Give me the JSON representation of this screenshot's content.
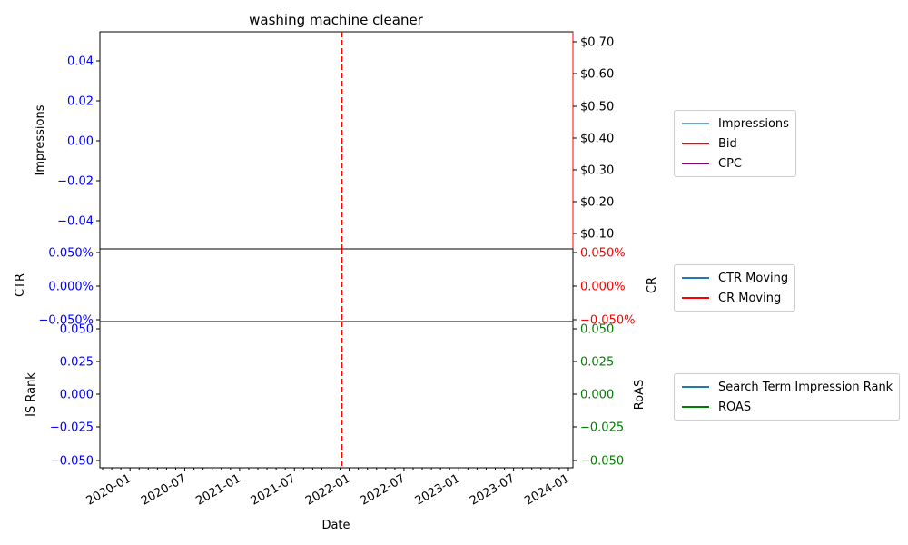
{
  "chart_data": {
    "type": "line",
    "title": "washing machine cleaner",
    "xlabel": "Date",
    "x_ticks": [
      "2020-01",
      "2020-07",
      "2021-01",
      "2021-07",
      "2022-01",
      "2022-07",
      "2023-01",
      "2023-07",
      "2024-01"
    ],
    "marker_date": "2021-12",
    "marker_color": "#ff0000",
    "colors": {
      "left_axis": "#0000ff",
      "bid_axis": "#ff0000",
      "cr_axis": "#ff0000",
      "roas_axis": "#008000"
    },
    "panels": [
      {
        "name": "impressions-panel",
        "left_label": "Impressions",
        "left_ticks": [
          "0.04",
          "0.02",
          "0.00",
          "−0.02",
          "−0.04"
        ],
        "left_range": [
          -0.055,
          0.055
        ],
        "right_label": "",
        "right_ticks": [
          "$0.70",
          "$0.60",
          "$0.50",
          "$0.40",
          "$0.30",
          "$0.20",
          "$0.10"
        ],
        "right_range": [
          0.05,
          0.73
        ],
        "series": [
          {
            "name": "Impressions",
            "color": "#5dade2",
            "values": []
          },
          {
            "name": "Bid",
            "color": "#ff0000",
            "values": []
          },
          {
            "name": "CPC",
            "color": "#800080",
            "values": []
          }
        ]
      },
      {
        "name": "ctr-panel",
        "left_label": "CTR",
        "left_ticks": [
          "0.050%",
          "0.000%",
          "−0.050%"
        ],
        "left_range": [
          -0.055,
          0.055
        ],
        "right_label": "CR",
        "right_ticks": [
          "0.050%",
          "0.000%",
          "−0.050%"
        ],
        "right_range": [
          -0.055,
          0.055
        ],
        "series": [
          {
            "name": "CTR Moving",
            "color": "#1f77b4",
            "values": []
          },
          {
            "name": "CR Moving",
            "color": "#ff0000",
            "values": []
          }
        ]
      },
      {
        "name": "rank-panel",
        "left_label": "IS Rank",
        "left_ticks": [
          "0.050",
          "0.025",
          "0.000",
          "−0.025",
          "−0.050"
        ],
        "left_range": [
          -0.055,
          0.055
        ],
        "right_label": "RoAS",
        "right_ticks": [
          "0.050",
          "0.025",
          "0.000",
          "−0.025",
          "−0.050"
        ],
        "right_range": [
          -0.055,
          0.055
        ],
        "series": [
          {
            "name": "Search Term Impression Rank",
            "color": "#1f77b4",
            "values": []
          },
          {
            "name": "ROAS",
            "color": "#008000",
            "values": []
          }
        ]
      }
    ]
  }
}
